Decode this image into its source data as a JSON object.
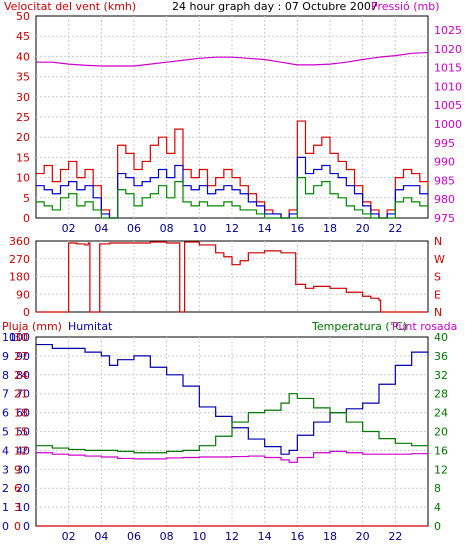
{
  "chart_data": [
    {
      "type": "line",
      "title": "24 hour graph day : 07 Octubre 2007",
      "left_axis_label": "Velocitat del vent (kmh)",
      "right_axis_label": "Pressió (mb)",
      "left_ticks": [
        "50",
        "45",
        "40",
        "35",
        "30",
        "25",
        "20",
        "15",
        "10",
        "5",
        "0"
      ],
      "right_ticks": [
        "1025",
        "1020",
        "1015",
        "1010",
        "1005",
        "1000",
        "995",
        "990",
        "985",
        "980",
        "975"
      ],
      "x_ticks": [
        "02",
        "04",
        "06",
        "08",
        "10",
        "12",
        "14",
        "16",
        "18",
        "20",
        "22"
      ],
      "xlim": [
        0,
        24
      ],
      "ylim_left": [
        0,
        50
      ],
      "ylim_right": [
        975,
        1027.5
      ],
      "series": [
        {
          "axis": "right",
          "color": "#cc00cc",
          "x": [
            0,
            1,
            2,
            3,
            4,
            5,
            6,
            7,
            8,
            9,
            10,
            11,
            12,
            13,
            14,
            15,
            16,
            17,
            18,
            19,
            20,
            21,
            22,
            23,
            24
          ],
          "values": [
            1015.5,
            1015.5,
            1015.0,
            1014.7,
            1014.5,
            1014.5,
            1014.5,
            1015.0,
            1015.5,
            1016.0,
            1016.5,
            1016.8,
            1016.8,
            1016.5,
            1016.2,
            1015.5,
            1014.8,
            1014.8,
            1015.0,
            1015.5,
            1016.2,
            1016.8,
            1017.2,
            1017.8,
            1018.0
          ]
        },
        {
          "axis": "left",
          "color": "#dd0000",
          "x": [
            0,
            0.5,
            1,
            1.5,
            2,
            2.5,
            3,
            3.5,
            4,
            4.5,
            5,
            5.5,
            6,
            6.5,
            7,
            7.5,
            8,
            8.5,
            9,
            9.5,
            10,
            10.5,
            11,
            11.5,
            12,
            12.5,
            13,
            13.5,
            14,
            14.5,
            15,
            15.5,
            16,
            16.5,
            17,
            17.5,
            18,
            18.5,
            19,
            19.5,
            20,
            20.5,
            21,
            21.5,
            22,
            22.5,
            23,
            23.5,
            24
          ],
          "values": [
            11,
            13,
            9,
            12,
            14,
            10,
            12,
            8,
            2,
            0,
            18,
            16,
            12,
            14,
            18,
            20,
            16,
            22,
            12,
            10,
            12,
            8,
            10,
            12,
            10,
            8,
            6,
            4,
            2,
            1,
            0,
            2,
            24,
            16,
            18,
            20,
            16,
            14,
            12,
            8,
            4,
            2,
            0,
            2,
            10,
            12,
            11,
            9,
            8
          ]
        },
        {
          "axis": "left",
          "color": "#0000cc",
          "x": [
            0,
            0.5,
            1,
            1.5,
            2,
            2.5,
            3,
            3.5,
            4,
            4.5,
            5,
            5.5,
            6,
            6.5,
            7,
            7.5,
            8,
            8.5,
            9,
            9.5,
            10,
            10.5,
            11,
            11.5,
            12,
            12.5,
            13,
            13.5,
            14,
            14.5,
            15,
            15.5,
            16,
            16.5,
            17,
            17.5,
            18,
            18.5,
            19,
            19.5,
            20,
            20.5,
            21,
            21.5,
            22,
            22.5,
            23,
            23.5,
            24
          ],
          "values": [
            8,
            7,
            6,
            8,
            9,
            7,
            8,
            5,
            1,
            0,
            11,
            10,
            8,
            9,
            10,
            12,
            10,
            13,
            8,
            7,
            8,
            6,
            7,
            8,
            7,
            6,
            4,
            3,
            1,
            1,
            0,
            1,
            15,
            11,
            12,
            13,
            11,
            10,
            8,
            6,
            3,
            1,
            0,
            1,
            7,
            8,
            8,
            6,
            6
          ]
        },
        {
          "axis": "left",
          "color": "#008800",
          "x": [
            0,
            0.5,
            1,
            1.5,
            2,
            2.5,
            3,
            3.5,
            4,
            4.5,
            5,
            5.5,
            6,
            6.5,
            7,
            7.5,
            8,
            8.5,
            9,
            9.5,
            10,
            10.5,
            11,
            11.5,
            12,
            12.5,
            13,
            13.5,
            14,
            14.5,
            15,
            15.5,
            16,
            16.5,
            17,
            17.5,
            18,
            18.5,
            19,
            19.5,
            20,
            20.5,
            21,
            21.5,
            22,
            22.5,
            23,
            23.5,
            24
          ],
          "values": [
            4,
            3,
            2,
            5,
            6,
            3,
            4,
            2,
            0,
            0,
            7,
            6,
            3,
            5,
            6,
            8,
            5,
            9,
            4,
            3,
            4,
            3,
            3,
            4,
            3,
            2,
            2,
            1,
            0,
            0,
            0,
            0,
            10,
            6,
            8,
            9,
            6,
            5,
            3,
            2,
            1,
            0,
            0,
            0,
            4,
            5,
            4,
            3,
            3
          ]
        }
      ]
    },
    {
      "type": "line",
      "left_ticks": [
        "360",
        "270",
        "180",
        "90",
        "0"
      ],
      "right_ticks": [
        "N",
        "W",
        "S",
        "E",
        "N"
      ],
      "ylim": [
        0,
        360
      ],
      "series": [
        {
          "color": "#cc0000",
          "x": [
            0,
            1.9,
            2.0,
            2.5,
            3.0,
            3.2,
            3.3,
            3.8,
            3.9,
            4.5,
            5.0,
            6,
            7,
            8,
            8.7,
            8.8,
            9.0,
            9.1,
            10,
            11,
            11.5,
            12,
            12.5,
            13,
            14,
            15,
            15.8,
            15.9,
            16.5,
            17,
            18,
            19,
            20,
            20.5,
            21.0,
            21.1,
            22,
            23,
            24
          ],
          "values": [
            0,
            0,
            350,
            345,
            340,
            350,
            0,
            0,
            345,
            350,
            350,
            350,
            355,
            350,
            350,
            0,
            0,
            355,
            340,
            300,
            280,
            240,
            260,
            300,
            310,
            300,
            300,
            140,
            120,
            130,
            120,
            100,
            80,
            70,
            60,
            0,
            0,
            0,
            0
          ]
        }
      ]
    },
    {
      "type": "line",
      "left_axis_label": "Pluja (mm)",
      "left_axis_label_2": "Humitat",
      "right_axis_label": "Temperatura (°C)",
      "right_axis_label_2": "Punt rosada",
      "left_ticks_rain": [
        "10",
        "9",
        "8",
        "7",
        "6",
        "5",
        "4",
        "3",
        "2",
        "1",
        "0"
      ],
      "left_ticks_hum": [
        "100",
        "90",
        "80",
        "70",
        "60",
        "50",
        "40",
        "30",
        "20",
        "10",
        "0"
      ],
      "left_ticks_temp": [
        "30",
        "27",
        "24",
        "21",
        "18",
        "15",
        "12",
        "9",
        "6",
        "3",
        "0"
      ],
      "right_ticks": [
        "40",
        "36",
        "32",
        "28",
        "24",
        "20",
        "16",
        "12",
        "8",
        "4",
        "0"
      ],
      "ylim_hum": [
        0,
        100
      ],
      "ylim_right": [
        0,
        40
      ],
      "series": [
        {
          "name": "Humitat",
          "axis": "hum",
          "color": "#0000aa",
          "x": [
            0,
            1,
            2,
            3,
            4,
            4.5,
            5,
            6,
            7,
            8,
            9,
            10,
            11,
            12,
            13,
            14,
            15,
            15.5,
            16,
            17,
            18,
            19,
            20,
            21,
            22,
            23,
            24
          ],
          "values": [
            96,
            94,
            94,
            92,
            90,
            85,
            88,
            90,
            84,
            80,
            74,
            63,
            58,
            52,
            46,
            42,
            38,
            40,
            48,
            55,
            60,
            62,
            65,
            75,
            85,
            92,
            90
          ]
        },
        {
          "name": "Temperatura",
          "axis": "right",
          "color": "#007700",
          "x": [
            0,
            1,
            2,
            3,
            4,
            5,
            6,
            7,
            8,
            9,
            10,
            11,
            12,
            13,
            14,
            15,
            15.5,
            16,
            17,
            18,
            19,
            20,
            21,
            22,
            23,
            24
          ],
          "values": [
            17,
            16.5,
            16.2,
            16,
            16,
            15.8,
            15.5,
            15.5,
            15.8,
            16,
            17,
            19,
            22,
            24,
            24.5,
            26,
            28,
            27,
            25,
            24,
            22,
            20,
            18.5,
            17.5,
            17,
            16.8
          ]
        },
        {
          "name": "Punt rosada",
          "axis": "right",
          "color": "#cc00cc",
          "x": [
            0,
            1,
            2,
            3,
            4,
            5,
            6,
            7,
            8,
            9,
            10,
            11,
            12,
            13,
            14,
            15,
            15.5,
            16,
            17,
            18,
            19,
            20,
            21,
            22,
            23,
            24
          ],
          "values": [
            15.5,
            15.2,
            15,
            14.8,
            14.6,
            14.3,
            14.2,
            14.2,
            14.4,
            14.5,
            14.6,
            14.6,
            14.7,
            14.8,
            14.5,
            14,
            13.5,
            14.5,
            15.5,
            15.8,
            15.5,
            15.2,
            15.2,
            15.2,
            15.3,
            15.2
          ]
        },
        {
          "name": "Pluja",
          "axis": "rain",
          "color": "#cc0000",
          "x": [
            0,
            24
          ],
          "values": [
            0,
            0
          ]
        }
      ],
      "x_ticks": [
        "02",
        "04",
        "06",
        "08",
        "10",
        "12",
        "14",
        "16",
        "18",
        "20",
        "22"
      ]
    }
  ]
}
